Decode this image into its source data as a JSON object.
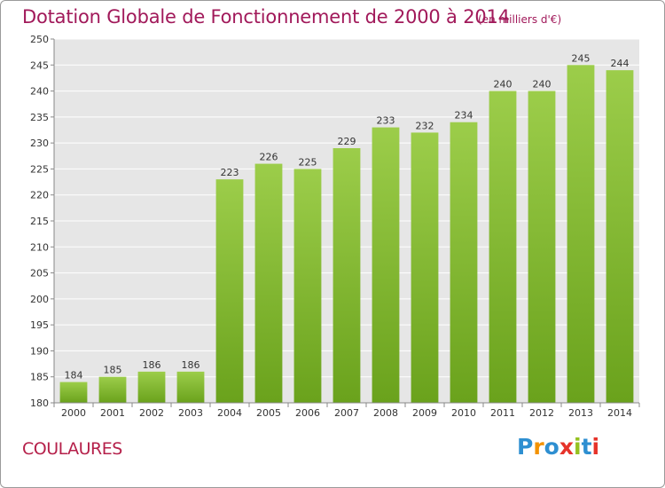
{
  "title": "Dotation Globale de Fonctionnement de 2000 à 2014",
  "subtitle": "(en milliers d'€)",
  "place": "COULAURES",
  "logo": [
    "P",
    "r",
    "o",
    "x",
    "i",
    "t",
    "i"
  ],
  "colors": {
    "bar_light": "#9ccd4a",
    "bar_dark": "#6aa21c",
    "title": "#a1195a",
    "grid": "#ffffff"
  },
  "chart_data": {
    "type": "bar",
    "title": "Dotation Globale de Fonctionnement de 2000 à 2014",
    "xlabel": "",
    "ylabel": "",
    "categories": [
      "2000",
      "2001",
      "2002",
      "2003",
      "2004",
      "2005",
      "2006",
      "2007",
      "2008",
      "2009",
      "2010",
      "2011",
      "2012",
      "2013",
      "2014"
    ],
    "values": [
      184,
      185,
      186,
      186,
      223,
      226,
      225,
      229,
      233,
      232,
      234,
      240,
      240,
      245,
      244
    ],
    "ylim": [
      180,
      250
    ],
    "yticks": [
      180,
      185,
      190,
      195,
      200,
      205,
      210,
      215,
      220,
      225,
      230,
      235,
      240,
      245,
      250
    ],
    "grid": true
  }
}
